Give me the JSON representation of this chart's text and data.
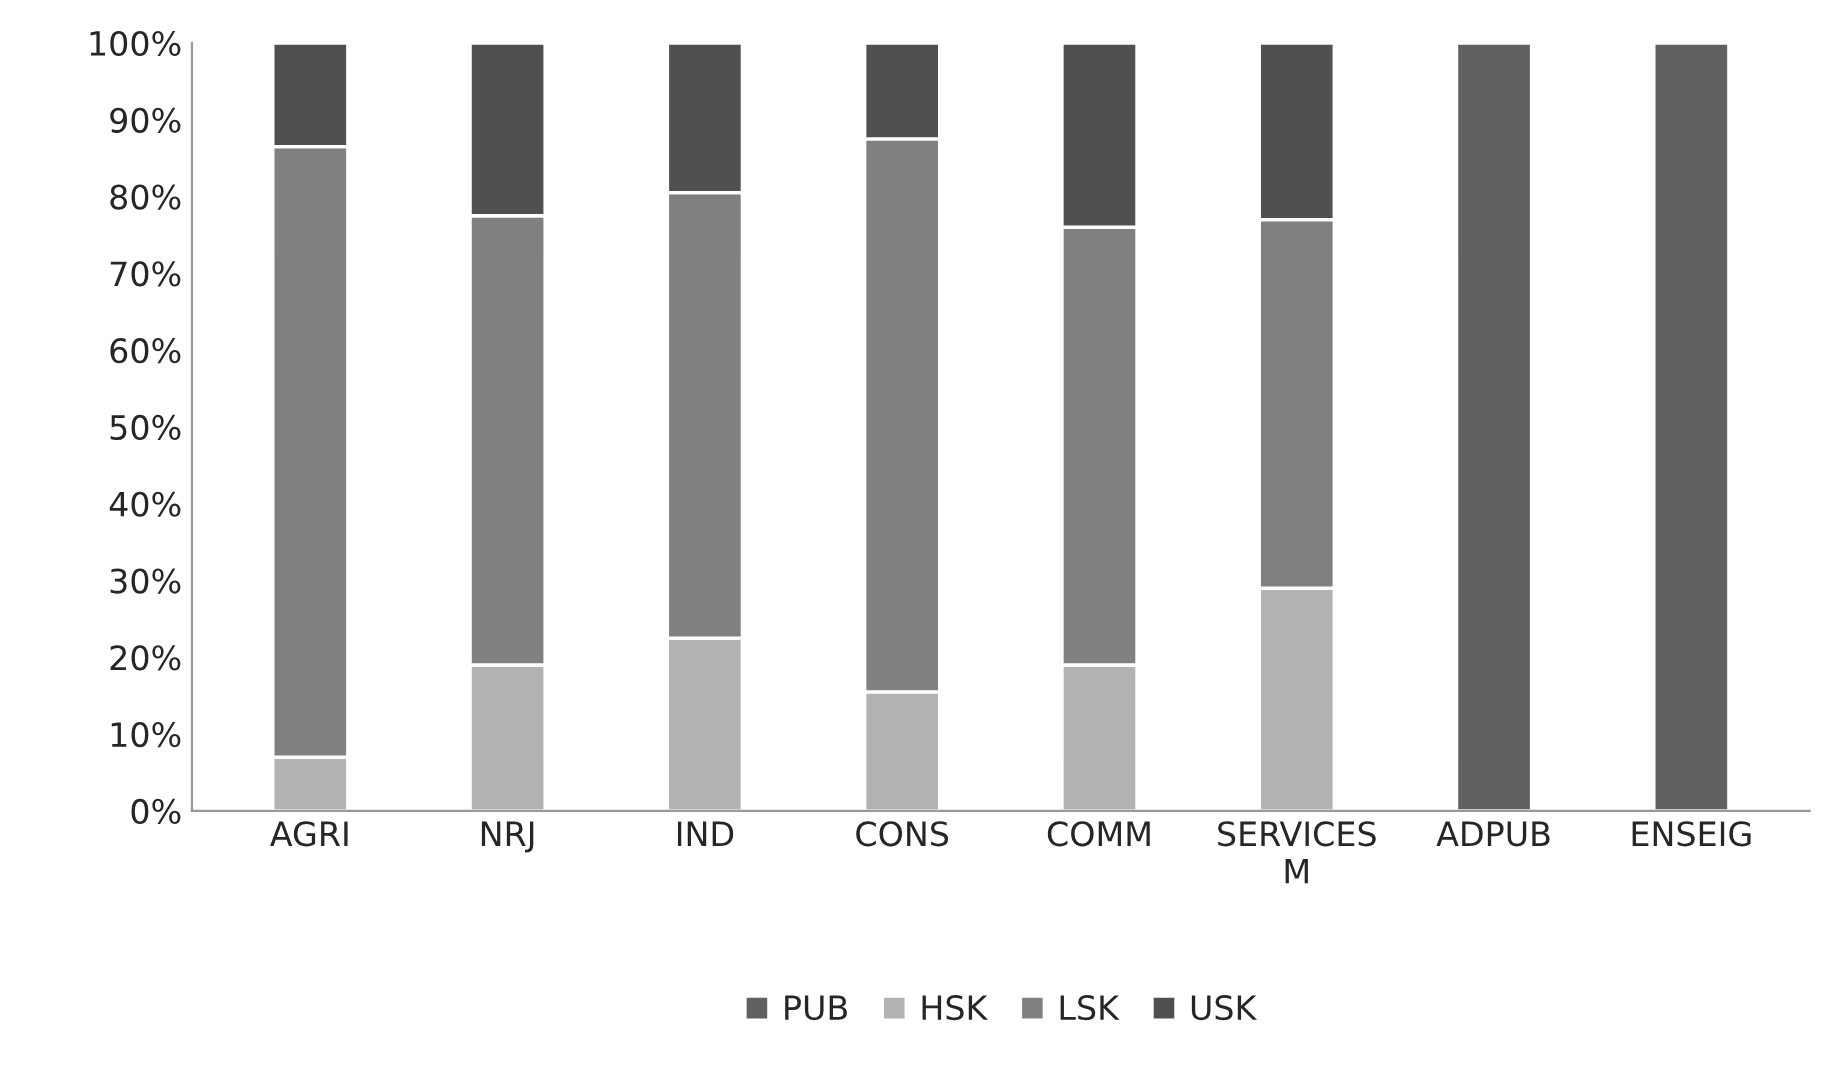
{
  "chart_data": {
    "type": "bar",
    "stacked": true,
    "categories": [
      "AGRI",
      "NRJ",
      "IND",
      "CONS",
      "COMM",
      "SERVICES\nM",
      "ADPUB",
      "ENSEIG"
    ],
    "series": [
      {
        "name": "PUB",
        "color": "#606060",
        "values": [
          null,
          null,
          null,
          null,
          null,
          null,
          100,
          100
        ]
      },
      {
        "name": "HSK",
        "color": "#b2b2b2",
        "values": [
          7,
          19,
          22.5,
          15.5,
          19,
          29,
          null,
          null
        ]
      },
      {
        "name": "LSK",
        "color": "#808080",
        "values": [
          79.5,
          58.5,
          58,
          72,
          57,
          48,
          null,
          null
        ]
      },
      {
        "name": "USK",
        "color": "#505050",
        "values": [
          13.5,
          22.5,
          19.5,
          12.5,
          24,
          23,
          null,
          null
        ]
      }
    ],
    "ylim": [
      0,
      100
    ],
    "yticks": [
      {
        "value": 0,
        "label": "0%"
      },
      {
        "value": 10,
        "label": "10%"
      },
      {
        "value": 20,
        "label": "20%"
      },
      {
        "value": 30,
        "label": "30%"
      },
      {
        "value": 40,
        "label": "40%"
      },
      {
        "value": 50,
        "label": "50%"
      },
      {
        "value": 60,
        "label": "60%"
      },
      {
        "value": 70,
        "label": "70%"
      },
      {
        "value": 80,
        "label": "80%"
      },
      {
        "value": 90,
        "label": "90%"
      },
      {
        "value": 100,
        "label": "100%"
      }
    ],
    "grid": false,
    "legend": "bottom"
  }
}
